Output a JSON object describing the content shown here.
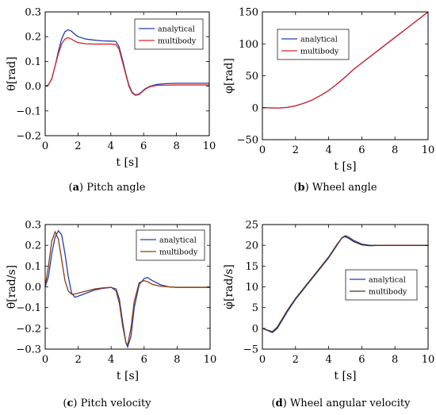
{
  "chart_data": [
    {
      "id": "a",
      "type": "line",
      "ylabel": "θ[rad]",
      "xlabel": "t [s]",
      "caption_letter": "a",
      "caption_text": "Pitch angle",
      "xlim": [
        0,
        10
      ],
      "ylim": [
        -0.2,
        0.3
      ],
      "xticks": [
        0,
        2,
        4,
        6,
        8,
        10
      ],
      "yticks": [
        -0.2,
        -0.1,
        0.0,
        0.1,
        0.2,
        0.3
      ],
      "ytick_labels": [
        "−0.2",
        "−0.1",
        "0.0",
        "0.1",
        "0.2",
        "0.3"
      ],
      "grid": false,
      "legend_position": "top-right",
      "series": [
        {
          "name": "analytical",
          "color": "#1f3fb0",
          "x": [
            0,
            0.2,
            0.4,
            0.6,
            0.8,
            1.0,
            1.2,
            1.4,
            1.6,
            1.8,
            2.0,
            2.5,
            3.0,
            3.5,
            4.0,
            4.3,
            4.5,
            4.7,
            4.9,
            5.1,
            5.3,
            5.5,
            5.7,
            5.9,
            6.1,
            6.4,
            6.8,
            7.3,
            8.0,
            9.0,
            10.0
          ],
          "y": [
            0,
            0.005,
            0.03,
            0.08,
            0.14,
            0.19,
            0.22,
            0.228,
            0.222,
            0.21,
            0.2,
            0.19,
            0.186,
            0.183,
            0.182,
            0.181,
            0.16,
            0.11,
            0.055,
            0.005,
            -0.025,
            -0.035,
            -0.032,
            -0.022,
            -0.01,
            0.0,
            0.007,
            0.01,
            0.012,
            0.012,
            0.012
          ]
        },
        {
          "name": "multibody",
          "color": "#d62728",
          "x": [
            0,
            0.2,
            0.4,
            0.6,
            0.8,
            1.0,
            1.2,
            1.4,
            1.6,
            1.8,
            2.0,
            2.5,
            3.0,
            3.5,
            4.0,
            4.3,
            4.5,
            4.7,
            4.9,
            5.1,
            5.3,
            5.5,
            5.7,
            5.9,
            6.1,
            6.4,
            6.8,
            7.3,
            8.0,
            9.0,
            10.0
          ],
          "y": [
            0,
            0.005,
            0.03,
            0.08,
            0.13,
            0.17,
            0.19,
            0.196,
            0.19,
            0.182,
            0.176,
            0.171,
            0.17,
            0.17,
            0.17,
            0.168,
            0.15,
            0.1,
            0.05,
            0.0,
            -0.028,
            -0.037,
            -0.034,
            -0.024,
            -0.012,
            -0.002,
            0.003,
            0.004,
            0.005,
            0.005,
            0.005
          ]
        }
      ]
    },
    {
      "id": "b",
      "type": "line",
      "ylabel": "φ[rad]",
      "xlabel": "t [s]",
      "caption_letter": "b",
      "caption_text": "Wheel angle",
      "xlim": [
        0,
        10
      ],
      "ylim": [
        -50,
        150
      ],
      "xticks": [
        0,
        2,
        4,
        6,
        8,
        10
      ],
      "yticks": [
        -50,
        0,
        50,
        100,
        150
      ],
      "ytick_labels": [
        "−50",
        "0",
        "50",
        "100",
        "150"
      ],
      "grid": false,
      "legend_position": "top-left",
      "series": [
        {
          "name": "analytical",
          "color": "#1f3fb0",
          "x": [
            0,
            0.5,
            1.0,
            1.5,
            2.0,
            2.5,
            3.0,
            3.5,
            4.0,
            4.5,
            5.0,
            5.5,
            6.0,
            7.0,
            8.0,
            9.0,
            10.0
          ],
          "y": [
            0,
            -0.3,
            -0.5,
            0.5,
            3,
            7,
            12,
            19,
            27,
            37,
            48,
            60,
            70,
            90,
            110,
            130,
            150
          ]
        },
        {
          "name": "multibody",
          "color": "#d62728",
          "x": [
            0,
            0.5,
            1.0,
            1.5,
            2.0,
            2.5,
            3.0,
            3.5,
            4.0,
            4.5,
            5.0,
            5.5,
            6.0,
            7.0,
            8.0,
            9.0,
            10.0
          ],
          "y": [
            0,
            -0.3,
            -0.5,
            0.5,
            3,
            7,
            12,
            19,
            27,
            37,
            48,
            60,
            70,
            90,
            110,
            130,
            150
          ]
        }
      ]
    },
    {
      "id": "c",
      "type": "line",
      "ylabel": "θ̇[rad/s]",
      "xlabel": "t [s]",
      "caption_letter": "c",
      "caption_text": "Pitch velocity",
      "xlim": [
        0,
        10
      ],
      "ylim": [
        -0.3,
        0.3
      ],
      "xticks": [
        0,
        2,
        4,
        6,
        8,
        10
      ],
      "yticks": [
        -0.3,
        -0.2,
        -0.1,
        0.0,
        0.1,
        0.2,
        0.3
      ],
      "ytick_labels": [
        "−0.3",
        "−0.2",
        "−0.1",
        "0.0",
        "0.1",
        "0.2",
        "0.3"
      ],
      "grid": false,
      "legend_position": "top-right",
      "series": [
        {
          "name": "analytical",
          "color": "#1f3fb0",
          "x": [
            0,
            0.2,
            0.4,
            0.6,
            0.8,
            1.0,
            1.2,
            1.4,
            1.6,
            1.8,
            2.0,
            2.5,
            3.0,
            3.5,
            4.0,
            4.3,
            4.5,
            4.7,
            4.9,
            5.0,
            5.2,
            5.4,
            5.7,
            6.0,
            6.2,
            6.5,
            7.0,
            7.5,
            8.0,
            9.0,
            10.0
          ],
          "y": [
            0,
            0.05,
            0.16,
            0.24,
            0.27,
            0.25,
            0.16,
            0.05,
            -0.03,
            -0.05,
            -0.045,
            -0.03,
            -0.015,
            -0.007,
            -0.003,
            -0.01,
            -0.06,
            -0.17,
            -0.27,
            -0.29,
            -0.24,
            -0.1,
            0.01,
            0.04,
            0.045,
            0.03,
            0.01,
            0.0,
            -0.003,
            -0.003,
            -0.003
          ]
        },
        {
          "name": "multibody",
          "color": "#8b3a0f",
          "x": [
            0,
            0.2,
            0.4,
            0.6,
            0.8,
            1.0,
            1.2,
            1.4,
            1.6,
            1.8,
            2.0,
            2.5,
            3.0,
            3.5,
            4.0,
            4.3,
            4.5,
            4.7,
            4.9,
            5.0,
            5.2,
            5.4,
            5.7,
            6.0,
            6.2,
            6.5,
            7.0,
            7.5,
            8.0,
            9.0,
            10.0
          ],
          "y": [
            0,
            0.1,
            0.22,
            0.265,
            0.23,
            0.13,
            0.03,
            -0.02,
            -0.035,
            -0.035,
            -0.03,
            -0.02,
            -0.01,
            -0.005,
            -0.002,
            -0.02,
            -0.08,
            -0.19,
            -0.27,
            -0.28,
            -0.2,
            -0.07,
            0.02,
            0.03,
            0.025,
            0.012,
            0.003,
            0.0,
            -0.002,
            -0.002,
            -0.002
          ]
        }
      ]
    },
    {
      "id": "d",
      "type": "line",
      "ylabel": "φ̇[rad/s]",
      "xlabel": "t [s]",
      "caption_letter": "d",
      "caption_text": "Wheel angular velocity",
      "xlim": [
        0,
        10
      ],
      "ylim": [
        -5,
        25
      ],
      "xticks": [
        0,
        2,
        4,
        6,
        8,
        10
      ],
      "yticks": [
        -5,
        0,
        5,
        10,
        15,
        20,
        25
      ],
      "ytick_labels": [
        "−5",
        "0",
        "5",
        "10",
        "15",
        "20",
        "25"
      ],
      "grid": false,
      "legend_position": "center-right",
      "series": [
        {
          "name": "analytical",
          "color": "#1f3fb0",
          "x": [
            0,
            0.3,
            0.6,
            0.9,
            1.2,
            1.5,
            2.0,
            2.5,
            3.0,
            3.5,
            4.0,
            4.5,
            4.8,
            5.0,
            5.2,
            5.5,
            6.0,
            6.5,
            7.0,
            8.0,
            9.0,
            10.0
          ],
          "y": [
            0,
            -0.5,
            -1.0,
            0,
            2,
            4,
            7,
            9.5,
            12,
            14.5,
            17,
            20,
            21.8,
            22.3,
            22,
            21.2,
            20.3,
            20,
            20,
            20,
            20,
            20
          ]
        },
        {
          "name": "multibody",
          "color": "#5a2a10",
          "x": [
            0,
            0.3,
            0.6,
            0.9,
            1.2,
            1.5,
            2.0,
            2.5,
            3.0,
            3.5,
            4.0,
            4.5,
            4.8,
            5.0,
            5.2,
            5.5,
            6.0,
            6.5,
            7.0,
            8.0,
            9.0,
            10.0
          ],
          "y": [
            0,
            -0.4,
            -0.8,
            0.3,
            2.3,
            4.3,
            7.2,
            9.7,
            12.2,
            14.7,
            17.2,
            20.2,
            21.8,
            22.1,
            21.7,
            20.9,
            20.1,
            19.9,
            20,
            20,
            20,
            20
          ]
        }
      ]
    }
  ]
}
